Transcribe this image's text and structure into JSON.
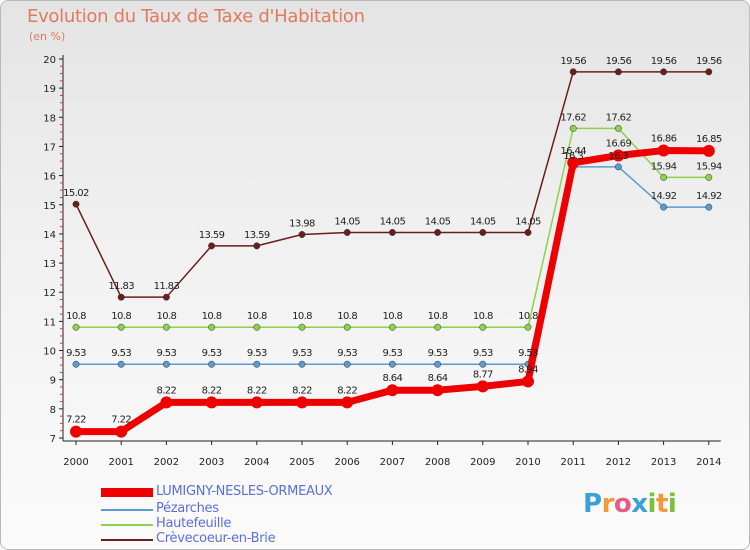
{
  "title": "Evolution du Taux de Taxe d'Habitation",
  "unit": "(en %)",
  "colors": {
    "LUMIGNY-NESLES-ORMEAUX": "#ee0000",
    "Pézarches": "#5b9bd5",
    "Hautefeuille": "#8ed14a",
    "Crèvecoeur-en-Brie": "#6b1d1d"
  },
  "chart_data": {
    "type": "line",
    "title": "Evolution du Taux de Taxe d'Habitation",
    "ylabel": "(en %)",
    "xlabel": "",
    "x": [
      "2000",
      "2001",
      "2002",
      "2003",
      "2004",
      "2005",
      "2006",
      "2007",
      "2008",
      "2009",
      "2010",
      "2011",
      "2012",
      "2013",
      "2014"
    ],
    "ylim": [
      7,
      20
    ],
    "yticks": [
      7,
      8,
      9,
      10,
      11,
      12,
      13,
      14,
      15,
      16,
      17,
      18,
      19,
      20
    ],
    "grid": false,
    "legend": "bottom-left",
    "series": [
      {
        "name": "LUMIGNY-NESLES-ORMEAUX",
        "values": [
          7.22,
          7.22,
          8.22,
          8.22,
          8.22,
          8.22,
          8.22,
          8.64,
          8.64,
          8.77,
          8.94,
          16.44,
          16.69,
          16.86,
          16.85
        ],
        "labels": [
          "7.22",
          "7.22",
          "8.22",
          "8.22",
          "8.22",
          "8.22",
          "8.22",
          "8.64",
          "8.64",
          "8.77",
          "8.94",
          "16.44",
          "16.69",
          "16.86",
          "16.85"
        ]
      },
      {
        "name": "Pézarches",
        "values": [
          9.53,
          9.53,
          9.53,
          9.53,
          9.53,
          9.53,
          9.53,
          9.53,
          9.53,
          9.53,
          9.53,
          16.3,
          16.3,
          14.92,
          14.92
        ],
        "labels": [
          "9.53",
          "9.53",
          "9.53",
          "9.53",
          "9.53",
          "9.53",
          "9.53",
          "9.53",
          "9.53",
          "9.53",
          "9.53",
          "16.3",
          "16.3",
          "14.92",
          "14.92"
        ]
      },
      {
        "name": "Hautefeuille",
        "values": [
          10.8,
          10.8,
          10.8,
          10.8,
          10.8,
          10.8,
          10.8,
          10.8,
          10.8,
          10.8,
          10.8,
          17.62,
          17.62,
          15.94,
          15.94
        ],
        "labels": [
          "10.8",
          "10.8",
          "10.8",
          "10.8",
          "10.8",
          "10.8",
          "10.8",
          "10.8",
          "10.8",
          "10.8",
          "10.8",
          "17.62",
          "17.62",
          "15.94",
          "15.94"
        ]
      },
      {
        "name": "Crèvecoeur-en-Brie",
        "values": [
          15.02,
          11.83,
          11.83,
          13.59,
          13.59,
          13.98,
          14.05,
          14.05,
          14.05,
          14.05,
          14.05,
          19.56,
          19.56,
          19.56,
          19.56
        ],
        "labels": [
          "15.02",
          "11.83",
          "11.83",
          "13.59",
          "13.59",
          "13.98",
          "14.05",
          "14.05",
          "14.05",
          "14.05",
          "14.05",
          "19.56",
          "19.56",
          "19.56",
          "19.56"
        ]
      }
    ]
  },
  "legend_items": [
    "LUMIGNY-NESLES-ORMEAUX",
    "Pézarches",
    "Hautefeuille",
    "Crèvecoeur-en-Brie"
  ],
  "logo": "Proxiti"
}
